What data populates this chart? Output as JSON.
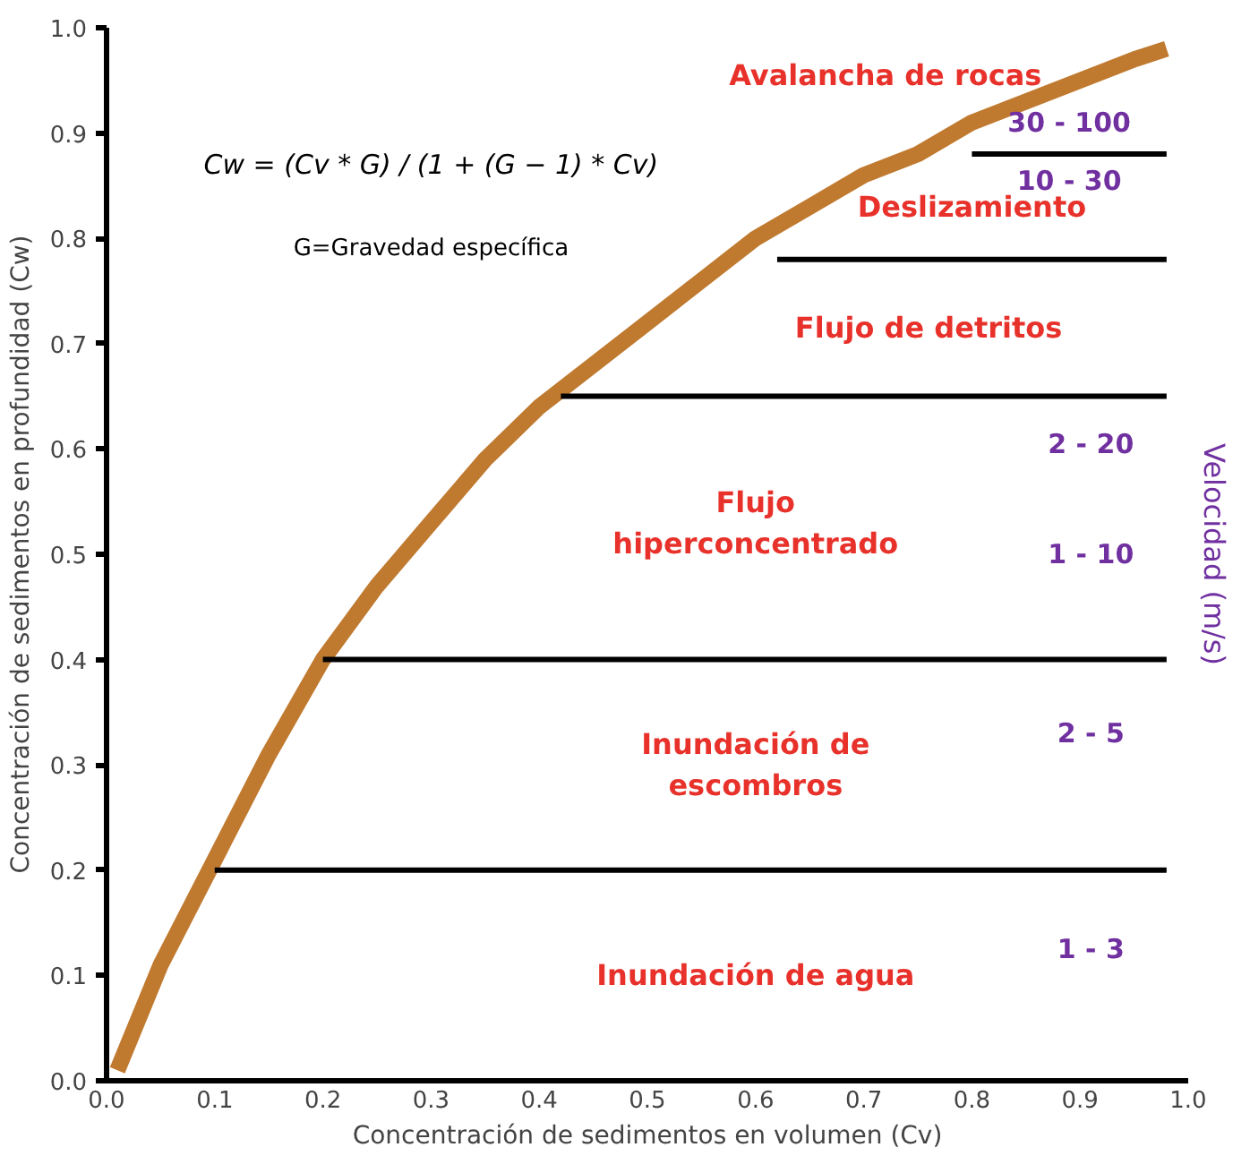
{
  "chart_data": {
    "type": "line",
    "xlabel": "Concentración de sedimentos en volumen (Cv)",
    "ylabel": "Concentración de sedimentos en profundidad (Cw)",
    "y2label": "Velocidad (m/s)",
    "xlim": [
      0,
      1.0
    ],
    "ylim": [
      0,
      1.0
    ],
    "xticks": [
      {
        "value": 0,
        "label": "0.0"
      },
      0.1,
      0.2,
      0.3,
      0.4,
      0.5,
      0.6,
      0.7,
      0.8,
      0.9,
      {
        "value": 1,
        "label": "1.0"
      }
    ],
    "yticks": [
      {
        "value": 0,
        "label": "0.0"
      },
      0.1,
      0.2,
      0.3,
      0.4,
      0.5,
      0.6,
      0.7,
      0.8,
      0.9,
      {
        "value": 1,
        "label": "1.0"
      }
    ],
    "grid": false,
    "marker": "none",
    "line_style": "solid",
    "series": [
      {
        "color": "#c07a30",
        "x": [
          0.01,
          0.05,
          0.1,
          0.15,
          0.2,
          0.25,
          0.3,
          0.35,
          0.4,
          0.45,
          0.5,
          0.55,
          0.6,
          0.65,
          0.7,
          0.75,
          0.8,
          0.85,
          0.9,
          0.95,
          0.98
        ],
        "values": [
          0.01,
          0.11,
          0.21,
          0.31,
          0.4,
          0.47,
          0.53,
          0.59,
          0.64,
          0.68,
          0.72,
          0.76,
          0.8,
          0.83,
          0.86,
          0.88,
          0.91,
          0.93,
          0.95,
          0.97,
          0.98
        ]
      },
      {
        "color": "#000000",
        "x": [
          0.1,
          0.98
        ],
        "values": [
          0.2,
          0.2
        ]
      },
      {
        "color": "#000000",
        "x": [
          0.2,
          0.98
        ],
        "values": [
          0.4,
          0.4
        ]
      },
      {
        "color": "#000000",
        "x": [
          0.42,
          0.98
        ],
        "values": [
          0.65,
          0.65
        ]
      },
      {
        "color": "#000000",
        "x": [
          0.62,
          0.98
        ],
        "values": [
          0.78,
          0.78
        ]
      },
      {
        "color": "#000000",
        "x": [
          0.8,
          0.98
        ],
        "values": [
          0.88,
          0.88
        ]
      }
    ],
    "annotations": [
      "Cw = (Cv * G) / (1 + (G − 1) * Cv)",
      "G=Gravedad específica",
      "Avalancha de rocas",
      "30 - 100",
      "10 - 30",
      "Deslizamiento",
      "Flujo de detritos",
      "2 - 20",
      "Flujo\nhiperconcentrado",
      "1 - 10",
      "Inundación de\nescombros",
      "2 - 5",
      "Inundación de agua",
      "1 - 3"
    ]
  }
}
